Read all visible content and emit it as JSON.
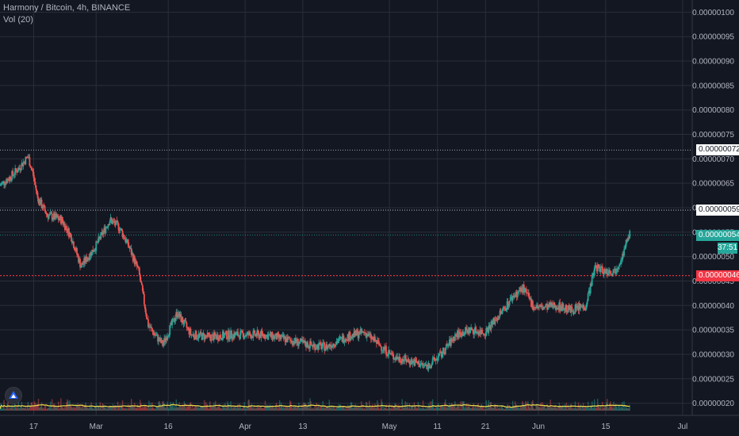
{
  "header": {
    "symbol_line": "Harmony / Bitcoin, 4h, BINANCE",
    "volume_line": "Vol (20)"
  },
  "chart_data": {
    "type": "candlestick",
    "y_axis": {
      "ticks": [
        "0.00000100",
        "0.00000095",
        "0.00000090",
        "0.00000085",
        "0.00000080",
        "0.00000075",
        "0.00000070",
        "0.00000065",
        "0.00000060",
        "0.00000055",
        "0.00000050",
        "0.00000045",
        "0.00000040",
        "0.00000035",
        "0.00000030",
        "0.00000025",
        "0.00000020"
      ],
      "ylim": [
        1.75e-07,
        1.025e-06
      ]
    },
    "x_axis": {
      "ticks": [
        "17",
        "Mar",
        "16",
        "Apr",
        "13",
        "May",
        "11",
        "21",
        "Jun",
        "15",
        "Jul"
      ],
      "range": [
        "2020-02-10",
        "2020-07-03"
      ]
    },
    "horizontal_lines": [
      {
        "label": "0.00000072",
        "value": 7.18e-07,
        "style": "dotted",
        "color": "#d1d4dc"
      },
      {
        "label": "0.00000059",
        "value": 5.95e-07,
        "style": "dotted",
        "color": "#d1d4dc"
      },
      {
        "label": "0.00000054",
        "value": 5.44e-07,
        "style": "dotted",
        "color": "#26a69a"
      },
      {
        "label": "0.00000046",
        "value": 4.61e-07,
        "style": "dotted",
        "color": "#f23645"
      }
    ],
    "price_trend": [
      {
        "x": "2020-02-10",
        "y": 6.45e-07
      },
      {
        "x": "2020-02-12",
        "y": 6.6e-07
      },
      {
        "x": "2020-02-14",
        "y": 6.8e-07
      },
      {
        "x": "2020-02-16",
        "y": 7.05e-07
      },
      {
        "x": "2020-02-17",
        "y": 6.7e-07
      },
      {
        "x": "2020-02-18",
        "y": 6.2e-07
      },
      {
        "x": "2020-02-20",
        "y": 5.85e-07
      },
      {
        "x": "2020-02-23",
        "y": 5.75e-07
      },
      {
        "x": "2020-02-25",
        "y": 5.4e-07
      },
      {
        "x": "2020-02-27",
        "y": 4.8e-07
      },
      {
        "x": "2020-03-01",
        "y": 5.2e-07
      },
      {
        "x": "2020-03-04",
        "y": 5.75e-07
      },
      {
        "x": "2020-03-06",
        "y": 5.6e-07
      },
      {
        "x": "2020-03-08",
        "y": 5.2e-07
      },
      {
        "x": "2020-03-10",
        "y": 4.7e-07
      },
      {
        "x": "2020-03-12",
        "y": 3.6e-07
      },
      {
        "x": "2020-03-13",
        "y": 3.45e-07
      },
      {
        "x": "2020-03-15",
        "y": 3.2e-07
      },
      {
        "x": "2020-03-18",
        "y": 3.85e-07
      },
      {
        "x": "2020-03-21",
        "y": 3.4e-07
      },
      {
        "x": "2020-03-25",
        "y": 3.35e-07
      },
      {
        "x": "2020-03-29",
        "y": 3.4e-07
      },
      {
        "x": "2020-04-05",
        "y": 3.4e-07
      },
      {
        "x": "2020-04-10",
        "y": 3.3e-07
      },
      {
        "x": "2020-04-14",
        "y": 3.2e-07
      },
      {
        "x": "2020-04-18",
        "y": 3.15e-07
      },
      {
        "x": "2020-04-22",
        "y": 3.35e-07
      },
      {
        "x": "2020-04-26",
        "y": 3.45e-07
      },
      {
        "x": "2020-04-29",
        "y": 3.2e-07
      },
      {
        "x": "2020-05-02",
        "y": 2.95e-07
      },
      {
        "x": "2020-05-06",
        "y": 2.85e-07
      },
      {
        "x": "2020-05-09",
        "y": 2.75e-07
      },
      {
        "x": "2020-05-12",
        "y": 3e-07
      },
      {
        "x": "2020-05-15",
        "y": 3.4e-07
      },
      {
        "x": "2020-05-18",
        "y": 3.5e-07
      },
      {
        "x": "2020-05-21",
        "y": 3.45e-07
      },
      {
        "x": "2020-05-24",
        "y": 3.8e-07
      },
      {
        "x": "2020-05-27",
        "y": 4.2e-07
      },
      {
        "x": "2020-05-29",
        "y": 4.35e-07
      },
      {
        "x": "2020-05-31",
        "y": 4e-07
      },
      {
        "x": "2020-06-02",
        "y": 3.95e-07
      },
      {
        "x": "2020-06-05",
        "y": 4e-07
      },
      {
        "x": "2020-06-08",
        "y": 3.9e-07
      },
      {
        "x": "2020-06-11",
        "y": 4e-07
      },
      {
        "x": "2020-06-13",
        "y": 4.8e-07
      },
      {
        "x": "2020-06-15",
        "y": 4.7e-07
      },
      {
        "x": "2020-06-17",
        "y": 4.7e-07
      },
      {
        "x": "2020-06-19",
        "y": 5.1e-07
      },
      {
        "x": "2020-06-20",
        "y": 5.45e-07
      }
    ],
    "last_price": 5.4e-07,
    "countdown": "37:51",
    "up_color": "#26a69a",
    "down_color": "#ef5350",
    "volume_ma_color": "#ffeb3b"
  }
}
